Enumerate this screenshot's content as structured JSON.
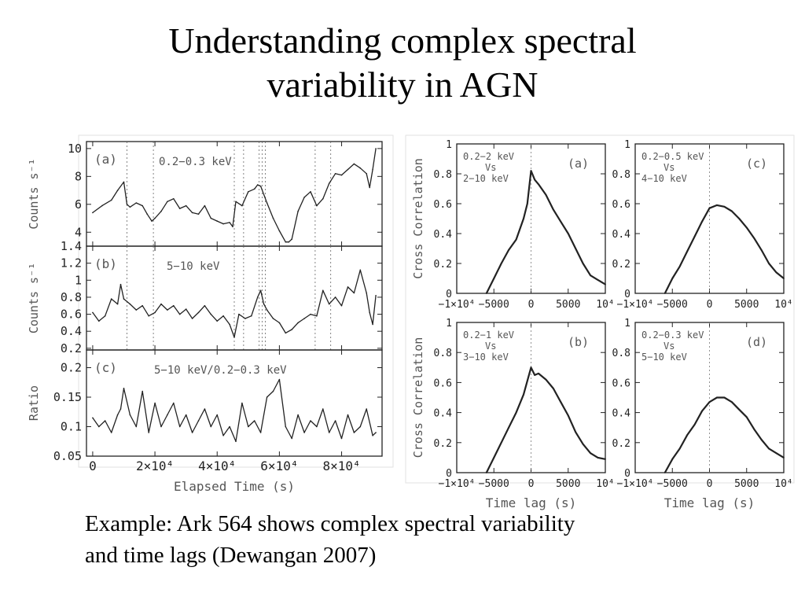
{
  "slide": {
    "title_line1": "Understanding complex spectral",
    "title_line2": "variability in AGN",
    "caption_line1": "Example: Ark 564 shows complex spectral variability",
    "caption_line2": "and time lags (Dewangan 2007)"
  },
  "chart_data": [
    {
      "id": "lc_a",
      "type": "line",
      "panel_label": "(a)",
      "band_label": "0.2−0.3 keV",
      "ylabel": "Counts s⁻¹",
      "ylim": [
        3,
        10.5
      ],
      "yticks": [
        "4",
        "6",
        "8",
        "10"
      ],
      "ytick_values": [
        4,
        6,
        8,
        10
      ],
      "xlim": [
        -2000,
        93000
      ],
      "dashed_x": [
        11000,
        19500,
        45500,
        48500,
        53500,
        54500,
        55500,
        71500,
        76500
      ],
      "series": [
        {
          "x": [
            0,
            3000,
            6000,
            8000,
            10000,
            11000,
            12000,
            14000,
            16000,
            17500,
            19000,
            20000,
            22000,
            24000,
            26000,
            28000,
            30000,
            32000,
            34000,
            36000,
            38000,
            40000,
            42000,
            44000,
            45000,
            46000,
            48000,
            50000,
            52000,
            53000,
            54000,
            56000,
            58000,
            60000,
            62000,
            63000,
            64000,
            66000,
            68000,
            70000,
            72000,
            74000,
            76000,
            78000,
            80000,
            82000,
            84000,
            86000,
            88000,
            89000,
            90000,
            91000
          ],
          "y": [
            5.4,
            5.9,
            6.3,
            7.0,
            7.6,
            6.0,
            5.8,
            6.1,
            5.9,
            5.3,
            4.8,
            5.0,
            5.5,
            6.2,
            6.4,
            5.7,
            5.9,
            5.4,
            5.3,
            5.9,
            5.0,
            4.8,
            4.6,
            4.7,
            4.4,
            6.2,
            5.9,
            6.9,
            7.1,
            7.4,
            7.3,
            6.1,
            5.0,
            4.1,
            3.3,
            3.3,
            3.5,
            5.5,
            6.5,
            6.9,
            5.9,
            6.4,
            7.5,
            8.2,
            8.1,
            8.5,
            8.9,
            8.6,
            8.2,
            7.2,
            8.5,
            10.0
          ]
        }
      ]
    },
    {
      "id": "lc_b",
      "type": "line",
      "panel_label": "(b)",
      "band_label": "5−10 keV",
      "ylabel": "Counts s⁻¹",
      "ylim": [
        0.18,
        1.4
      ],
      "yticks": [
        "0.2",
        "0.4",
        "0.6",
        "0.8",
        "1",
        "1.2",
        "1.4"
      ],
      "ytick_values": [
        0.2,
        0.4,
        0.6,
        0.8,
        1.0,
        1.2,
        1.4
      ],
      "xlim": [
        -2000,
        93000
      ],
      "dashed_x": [
        11000,
        19500,
        45500,
        48500,
        53500,
        54500,
        55500,
        71500,
        76500
      ],
      "series": [
        {
          "x": [
            0,
            2000,
            4000,
            6000,
            8000,
            9000,
            10000,
            12000,
            14000,
            16000,
            18000,
            20000,
            22000,
            24000,
            26000,
            28000,
            30000,
            32000,
            34000,
            36000,
            38000,
            40000,
            42000,
            44000,
            45500,
            47000,
            49000,
            51000,
            53000,
            54000,
            55000,
            56000,
            58000,
            60000,
            62000,
            64000,
            66000,
            68000,
            70000,
            72000,
            74000,
            76000,
            78000,
            80000,
            82000,
            84000,
            86000,
            88000,
            89000,
            90000,
            91000
          ],
          "y": [
            0.62,
            0.52,
            0.58,
            0.78,
            0.72,
            0.95,
            0.78,
            0.72,
            0.65,
            0.7,
            0.58,
            0.62,
            0.72,
            0.65,
            0.7,
            0.6,
            0.66,
            0.55,
            0.62,
            0.7,
            0.6,
            0.52,
            0.58,
            0.48,
            0.33,
            0.6,
            0.55,
            0.58,
            0.8,
            0.88,
            0.72,
            0.65,
            0.55,
            0.5,
            0.38,
            0.42,
            0.5,
            0.55,
            0.6,
            0.58,
            0.88,
            0.72,
            0.8,
            0.7,
            0.92,
            0.85,
            1.12,
            0.85,
            0.62,
            0.48,
            0.82
          ]
        }
      ]
    },
    {
      "id": "lc_c",
      "type": "line",
      "panel_label": "(c)",
      "band_label": "5−10 keV/0.2−0.3 keV",
      "ylabel": "Ratio",
      "xlabel": "Elapsed Time (s)",
      "ylim": [
        0.05,
        0.23
      ],
      "yticks": [
        "0.05",
        "0.1",
        "0.15",
        "0.2"
      ],
      "ytick_values": [
        0.05,
        0.1,
        0.15,
        0.2
      ],
      "xlim": [
        -2000,
        93000
      ],
      "xticks": [
        "0",
        "2×10⁴",
        "4×10⁴",
        "6×10⁴",
        "8×10⁴"
      ],
      "xtick_values": [
        0,
        20000,
        40000,
        60000,
        80000
      ],
      "series": [
        {
          "x": [
            0,
            2000,
            4000,
            6000,
            8000,
            9000,
            10000,
            12000,
            14000,
            16000,
            18000,
            20000,
            22000,
            24000,
            26000,
            28000,
            30000,
            32000,
            34000,
            36000,
            38000,
            40000,
            42000,
            44000,
            46000,
            48000,
            50000,
            52000,
            54000,
            56000,
            58000,
            60000,
            62000,
            64000,
            66000,
            68000,
            70000,
            72000,
            74000,
            76000,
            78000,
            80000,
            82000,
            84000,
            86000,
            88000,
            90000,
            91000
          ],
          "y": [
            0.115,
            0.1,
            0.11,
            0.09,
            0.12,
            0.13,
            0.165,
            0.12,
            0.1,
            0.16,
            0.09,
            0.14,
            0.1,
            0.12,
            0.14,
            0.1,
            0.12,
            0.09,
            0.11,
            0.13,
            0.1,
            0.12,
            0.085,
            0.1,
            0.075,
            0.14,
            0.1,
            0.11,
            0.09,
            0.15,
            0.16,
            0.18,
            0.1,
            0.08,
            0.12,
            0.09,
            0.11,
            0.1,
            0.13,
            0.09,
            0.11,
            0.08,
            0.12,
            0.09,
            0.1,
            0.13,
            0.085,
            0.09
          ]
        }
      ]
    },
    {
      "id": "cc_a",
      "type": "line",
      "panel_label": "(a)",
      "bands": [
        "0.2−2 keV",
        "Vs",
        "2−10 keV"
      ],
      "ylabel": "Cross Correlation",
      "ylim": [
        0,
        1
      ],
      "yticks": [
        "0",
        "0.2",
        "0.4",
        "0.6",
        "0.8",
        "1"
      ],
      "ytick_values": [
        0,
        0.2,
        0.4,
        0.6,
        0.8,
        1
      ],
      "xlim": [
        -10000,
        10000
      ],
      "xticks": [
        "−1×10⁴",
        "−5000",
        "0",
        "5000",
        "10⁴"
      ],
      "xtick_values": [
        -10000,
        -5000,
        0,
        5000,
        10000
      ],
      "series": [
        {
          "x": [
            -6000,
            -5000,
            -4000,
            -3000,
            -2000,
            -1000,
            -500,
            0,
            500,
            1000,
            2000,
            3000,
            4000,
            5000,
            6000,
            7000,
            8000,
            9000,
            10000
          ],
          "y": [
            0.0,
            0.1,
            0.2,
            0.29,
            0.36,
            0.5,
            0.6,
            0.82,
            0.76,
            0.73,
            0.66,
            0.56,
            0.48,
            0.4,
            0.3,
            0.2,
            0.12,
            0.09,
            0.06
          ]
        }
      ]
    },
    {
      "id": "cc_c",
      "type": "line",
      "panel_label": "(c)",
      "bands": [
        "0.2−0.5 keV",
        "Vs",
        "4−10 keV"
      ],
      "ylim": [
        0,
        1
      ],
      "yticks": [
        "0",
        "0.2",
        "0.4",
        "0.6",
        "0.8",
        "1"
      ],
      "ytick_values": [
        0,
        0.2,
        0.4,
        0.6,
        0.8,
        1
      ],
      "xlim": [
        -10000,
        10000
      ],
      "xticks": [
        "−1×10⁴",
        "−5000",
        "0",
        "5000",
        "10⁴"
      ],
      "xtick_values": [
        -10000,
        -5000,
        0,
        5000,
        10000
      ],
      "series": [
        {
          "x": [
            -6000,
            -5000,
            -4000,
            -3000,
            -2000,
            -1000,
            0,
            1000,
            2000,
            3000,
            4000,
            5000,
            6000,
            7000,
            8000,
            9000,
            10000
          ],
          "y": [
            0.0,
            0.1,
            0.18,
            0.28,
            0.38,
            0.48,
            0.57,
            0.59,
            0.58,
            0.55,
            0.5,
            0.44,
            0.37,
            0.29,
            0.2,
            0.14,
            0.1
          ]
        }
      ]
    },
    {
      "id": "cc_b",
      "type": "line",
      "panel_label": "(b)",
      "bands": [
        "0.2−1 keV",
        "Vs",
        "3−10 keV"
      ],
      "ylabel": "Cross Correlation",
      "xlabel": "Time lag (s)",
      "ylim": [
        0,
        1
      ],
      "yticks": [
        "0",
        "0.2",
        "0.4",
        "0.6",
        "0.8",
        "1"
      ],
      "ytick_values": [
        0,
        0.2,
        0.4,
        0.6,
        0.8,
        1
      ],
      "xlim": [
        -10000,
        10000
      ],
      "xticks": [
        "−1×10⁴",
        "−5000",
        "0",
        "5000",
        "10⁴"
      ],
      "xtick_values": [
        -10000,
        -5000,
        0,
        5000,
        10000
      ],
      "series": [
        {
          "x": [
            -6000,
            -5000,
            -4000,
            -3000,
            -2000,
            -1000,
            0,
            500,
            1000,
            2000,
            3000,
            4000,
            5000,
            6000,
            7000,
            8000,
            9000,
            10000
          ],
          "y": [
            0.0,
            0.1,
            0.2,
            0.3,
            0.4,
            0.52,
            0.7,
            0.65,
            0.66,
            0.62,
            0.56,
            0.47,
            0.38,
            0.27,
            0.19,
            0.13,
            0.1,
            0.09
          ]
        }
      ]
    },
    {
      "id": "cc_d",
      "type": "line",
      "panel_label": "(d)",
      "bands": [
        "0.2−0.3 keV",
        "Vs",
        "5−10 keV"
      ],
      "xlabel": "Time lag (s)",
      "ylim": [
        0,
        1
      ],
      "yticks": [
        "0",
        "0.2",
        "0.4",
        "0.6",
        "0.8",
        "1"
      ],
      "ytick_values": [
        0,
        0.2,
        0.4,
        0.6,
        0.8,
        1
      ],
      "xlim": [
        -10000,
        10000
      ],
      "xticks": [
        "−1×10⁴",
        "−5000",
        "0",
        "5000",
        "10⁴"
      ],
      "xtick_values": [
        -10000,
        -5000,
        0,
        5000,
        10000
      ],
      "series": [
        {
          "x": [
            -6000,
            -5000,
            -4000,
            -3000,
            -2000,
            -1000,
            0,
            1000,
            2000,
            3000,
            4000,
            5000,
            6000,
            7000,
            8000,
            9000,
            10000
          ],
          "y": [
            0.0,
            0.09,
            0.16,
            0.25,
            0.32,
            0.41,
            0.47,
            0.5,
            0.5,
            0.47,
            0.42,
            0.37,
            0.29,
            0.22,
            0.16,
            0.13,
            0.1
          ]
        }
      ]
    }
  ]
}
